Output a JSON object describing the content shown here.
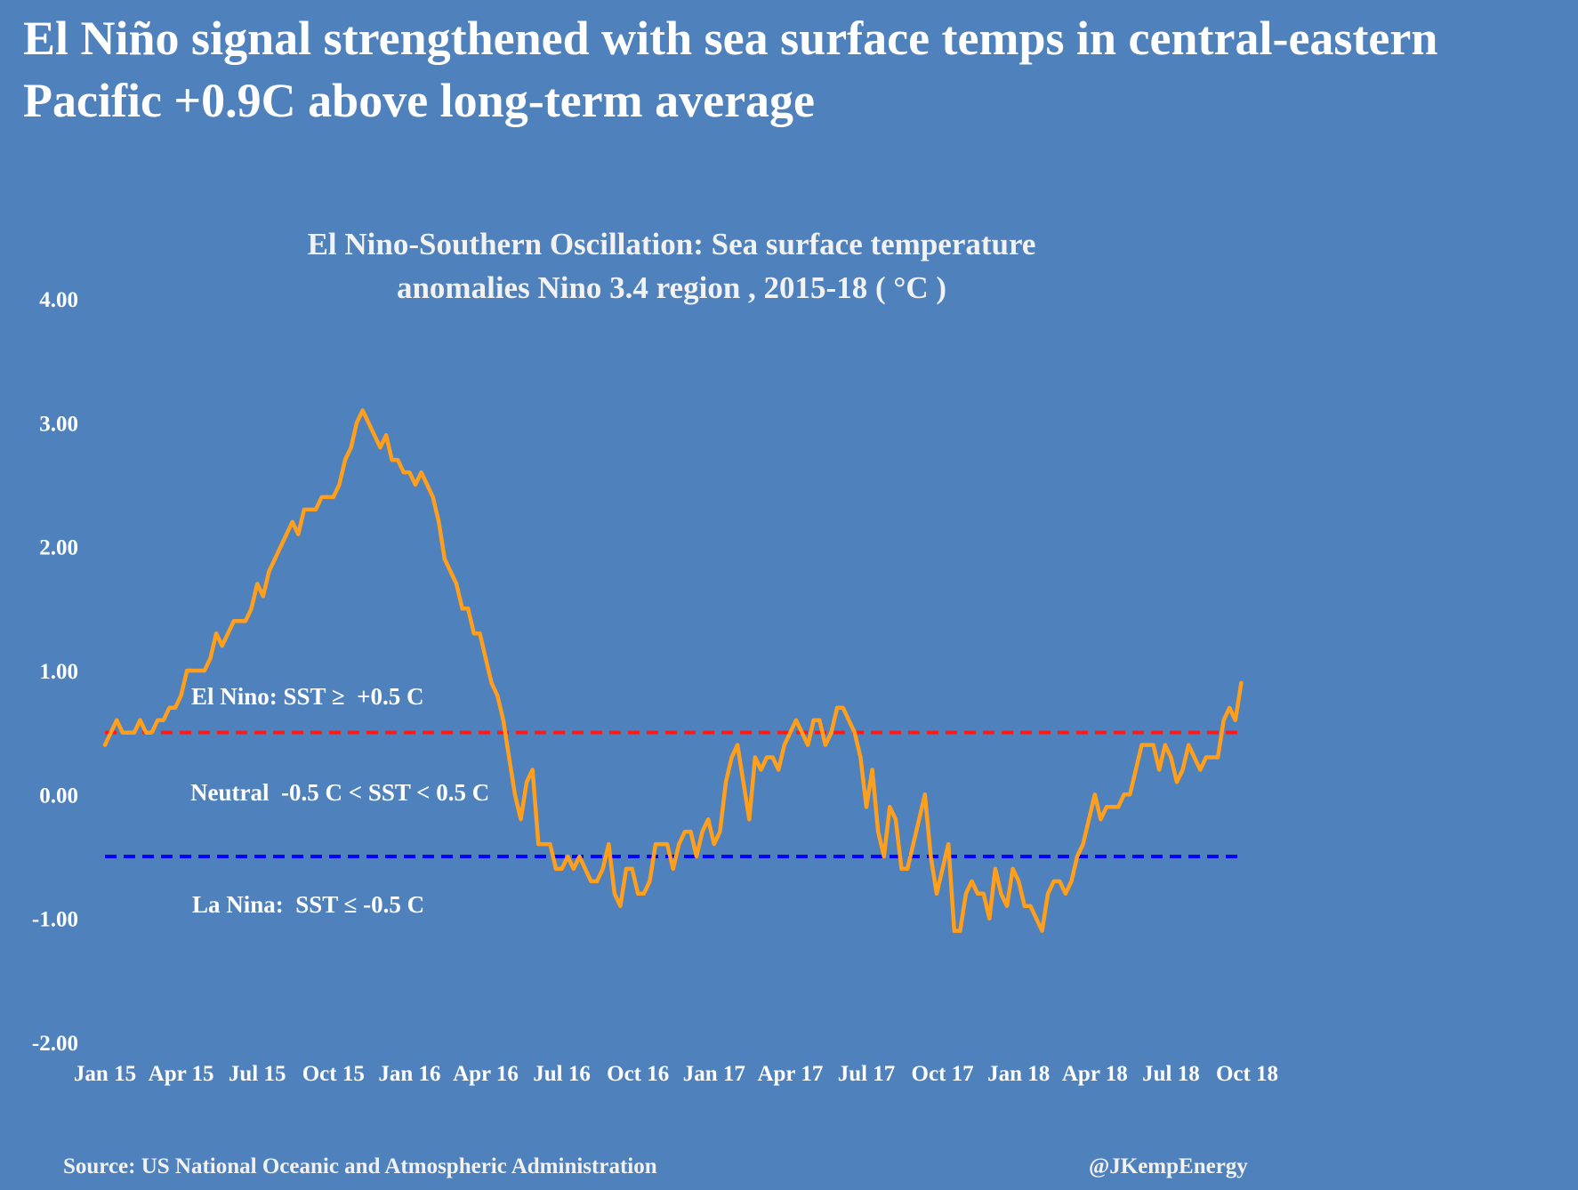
{
  "headline": {
    "line1": "El Niño signal strengthened with sea surface temps in central-eastern",
    "line2": "Pacific +0.9C above long-term average"
  },
  "chart_data": {
    "type": "line",
    "title_line1": "El Nino-Southern Oscillation: Sea surface temperature",
    "title_line2": "anomalies Nino 3.4 region , 2015-18 ( °C )",
    "xlabel": "",
    "ylabel": "",
    "ylim": [
      -2.0,
      4.0
    ],
    "y_ticks": [
      "4.00",
      "3.00",
      "2.00",
      "1.00",
      "0.00",
      "-1.00",
      "-2.00"
    ],
    "x_tick_labels": [
      "Jan 15",
      "Apr 15",
      "Jul 15",
      "Oct 15",
      "Jan 16",
      "Apr 16",
      "Jul 16",
      "Oct 16",
      "Jan 17",
      "Apr 17",
      "Jul 17",
      "Oct 17",
      "Jan 18",
      "Apr 18",
      "Jul 18",
      "Oct 18"
    ],
    "x_start": "Jan 2015",
    "x_unit": "weeks",
    "line_color": "#ff9f1c",
    "series": [
      {
        "name": "Nino 3.4 SST anomaly (°C)",
        "values": [
          0.4,
          0.5,
          0.6,
          0.5,
          0.5,
          0.5,
          0.6,
          0.5,
          0.5,
          0.6,
          0.6,
          0.7,
          0.7,
          0.8,
          1.0,
          1.0,
          1.0,
          1.0,
          1.1,
          1.3,
          1.2,
          1.3,
          1.4,
          1.4,
          1.4,
          1.5,
          1.7,
          1.6,
          1.8,
          1.9,
          2.0,
          2.1,
          2.2,
          2.1,
          2.3,
          2.3,
          2.3,
          2.4,
          2.4,
          2.4,
          2.5,
          2.7,
          2.8,
          3.0,
          3.1,
          3.0,
          2.9,
          2.8,
          2.9,
          2.7,
          2.7,
          2.6,
          2.6,
          2.5,
          2.6,
          2.5,
          2.4,
          2.2,
          1.9,
          1.8,
          1.7,
          1.5,
          1.5,
          1.3,
          1.3,
          1.1,
          0.9,
          0.8,
          0.6,
          0.3,
          0.0,
          -0.2,
          0.1,
          0.2,
          -0.4,
          -0.4,
          -0.4,
          -0.6,
          -0.6,
          -0.5,
          -0.6,
          -0.5,
          -0.6,
          -0.7,
          -0.7,
          -0.6,
          -0.4,
          -0.8,
          -0.9,
          -0.6,
          -0.6,
          -0.8,
          -0.8,
          -0.7,
          -0.4,
          -0.4,
          -0.4,
          -0.6,
          -0.4,
          -0.3,
          -0.3,
          -0.5,
          -0.3,
          -0.2,
          -0.4,
          -0.3,
          0.1,
          0.3,
          0.4,
          0.1,
          -0.2,
          0.3,
          0.2,
          0.3,
          0.3,
          0.2,
          0.4,
          0.5,
          0.6,
          0.5,
          0.4,
          0.6,
          0.6,
          0.4,
          0.5,
          0.7,
          0.7,
          0.6,
          0.5,
          0.3,
          -0.1,
          0.2,
          -0.3,
          -0.5,
          -0.1,
          -0.2,
          -0.6,
          -0.6,
          -0.4,
          -0.2,
          0.0,
          -0.5,
          -0.8,
          -0.6,
          -0.4,
          -1.1,
          -1.1,
          -0.8,
          -0.7,
          -0.8,
          -0.8,
          -1.0,
          -0.6,
          -0.8,
          -0.9,
          -0.6,
          -0.7,
          -0.9,
          -0.9,
          -1.0,
          -1.1,
          -0.8,
          -0.7,
          -0.7,
          -0.8,
          -0.7,
          -0.5,
          -0.4,
          -0.2,
          0.0,
          -0.2,
          -0.1,
          -0.1,
          -0.1,
          0.0,
          0.0,
          0.2,
          0.4,
          0.4,
          0.4,
          0.2,
          0.4,
          0.3,
          0.1,
          0.2,
          0.4,
          0.3,
          0.2,
          0.3,
          0.3,
          0.3,
          0.6,
          0.7,
          0.6,
          0.9
        ]
      }
    ],
    "thresholds": [
      {
        "name": "El Nino threshold",
        "value": 0.5,
        "color": "#ff1a1a",
        "style": "dashed"
      },
      {
        "name": "La Nina threshold",
        "value": -0.5,
        "color": "#0000ff",
        "style": "dashed"
      }
    ],
    "annotations": {
      "el_nino": "El Nino: SST ≥  +0.5 C",
      "neutral": "Neutral  -0.5 C < SST < 0.5 C",
      "la_nina": "La Nina:  SST ≤ -0.5 C"
    },
    "grid": false,
    "legend": "none"
  },
  "footer": {
    "source": "Source: US National Oceanic and Atmospheric Administration",
    "handle": "@JKempEnergy"
  }
}
